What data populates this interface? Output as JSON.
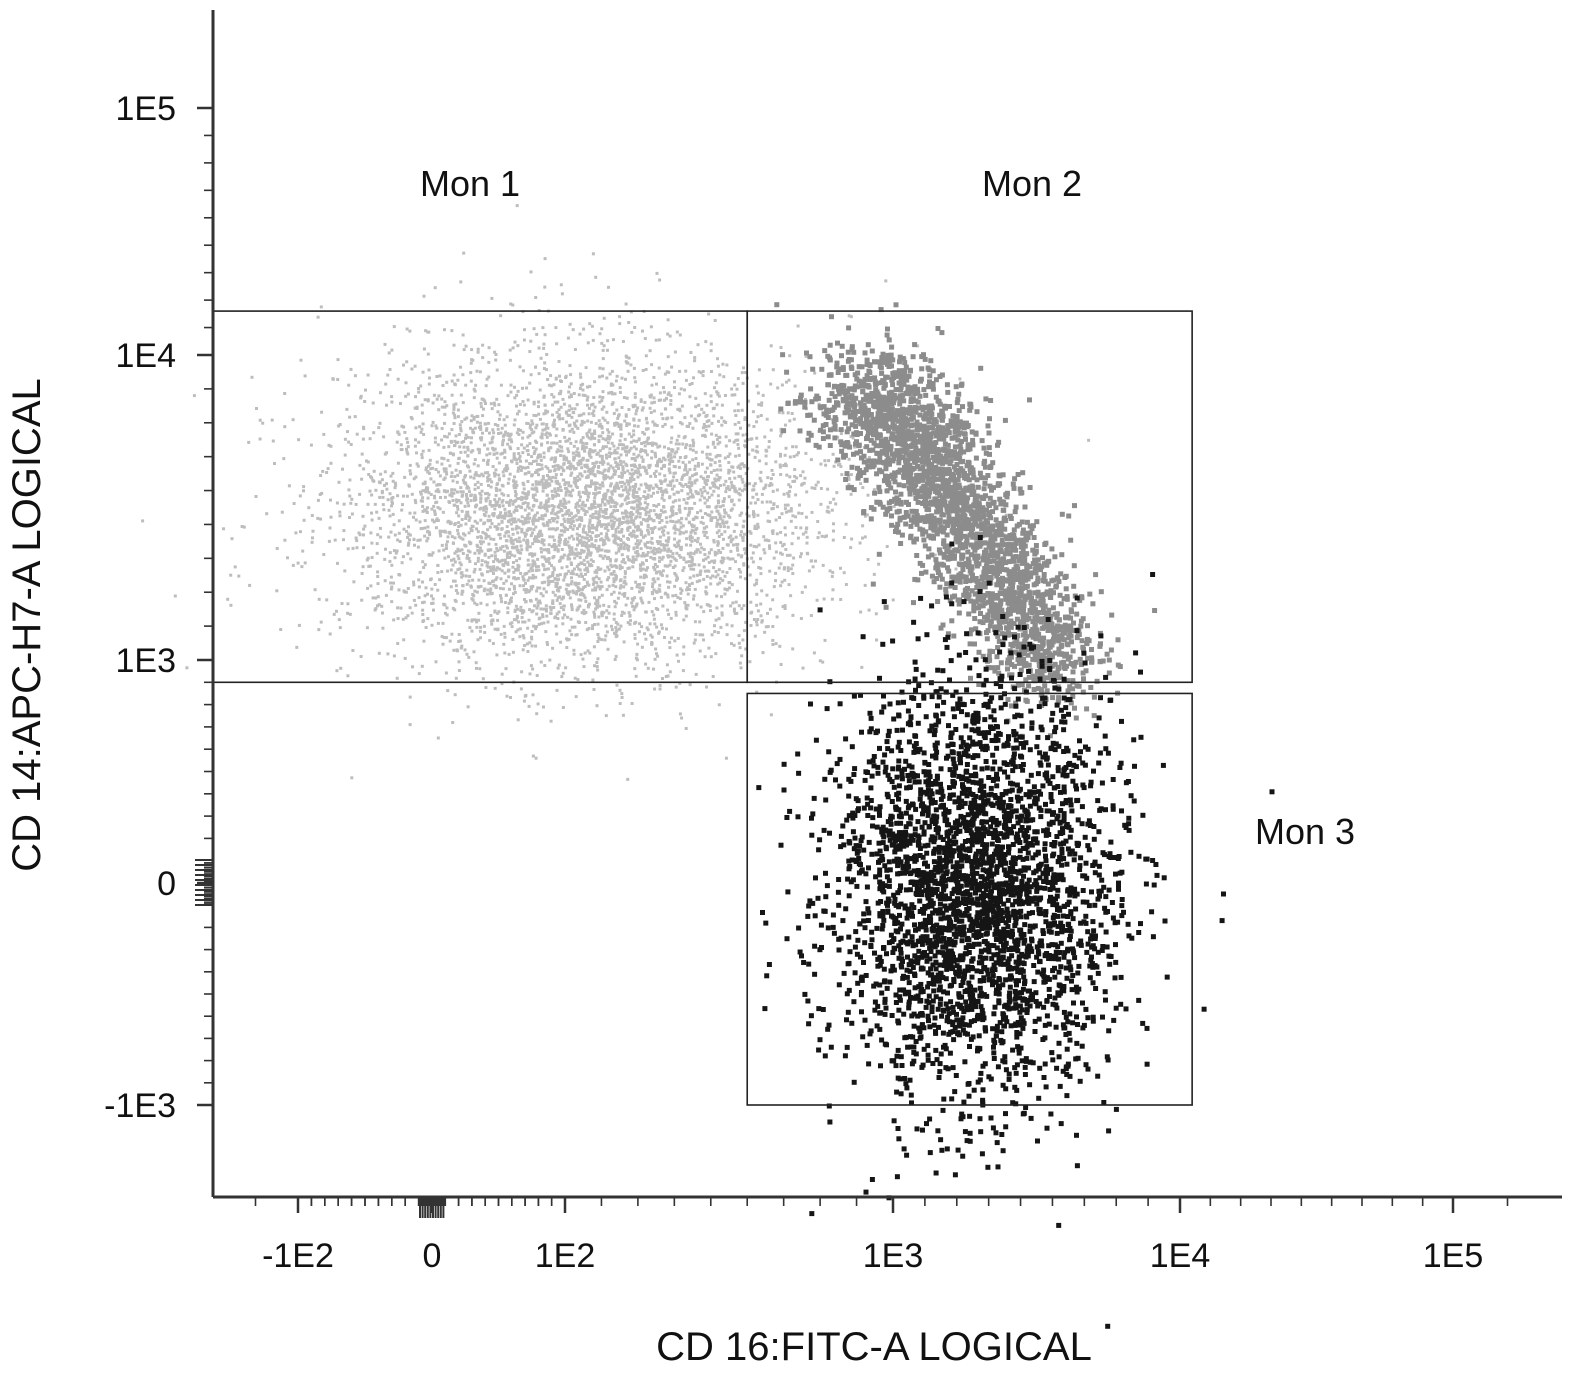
{
  "chart_data": {
    "type": "scatter",
    "xlabel": "CD 16:FITC-A LOGICAL",
    "ylabel": "CD 14:APC-H7-A LOGICAL",
    "x_scale": "logicle",
    "y_scale": "logicle",
    "xlim": [
      -300,
      300000
    ],
    "ylim": [
      -3000,
      200000
    ],
    "x_ticks": [
      {
        "value": -100,
        "label": "-1E2"
      },
      {
        "value": 0,
        "label": "0"
      },
      {
        "value": 100,
        "label": "1E2"
      },
      {
        "value": 1000,
        "label": "1E3"
      },
      {
        "value": 10000,
        "label": "1E4"
      },
      {
        "value": 100000,
        "label": "1E5"
      }
    ],
    "y_ticks": [
      {
        "value": -1000,
        "label": "-1E3"
      },
      {
        "value": 0,
        "label": "0"
      },
      {
        "value": 1000,
        "label": "1E3"
      },
      {
        "value": 10000,
        "label": "1E4"
      },
      {
        "value": 100000,
        "label": "1E5"
      }
    ],
    "grid": false,
    "gates": [
      {
        "name": "Mon 1",
        "x_range": [
          -300,
          600
        ],
        "y_range": [
          900,
          26000
        ]
      },
      {
        "name": "Mon 2",
        "x_range": [
          600,
          14000
        ],
        "y_range": [
          900,
          26000
        ]
      },
      {
        "name": "Mon 3",
        "x_range": [
          600,
          14000
        ],
        "y_range": [
          -1000,
          850
        ]
      }
    ],
    "series": [
      {
        "name": "Mon 1",
        "color": "#bdbdbd",
        "x_center": 150,
        "x_spread": [
          -150,
          600
        ],
        "y_center": 5500,
        "y_spread": [
          1500,
          15000
        ]
      },
      {
        "name": "Mon 2",
        "color": "#8c8c8c",
        "x_center": 2500,
        "x_spread": [
          600,
          7000
        ],
        "y_center": 4000,
        "y_spread": [
          900,
          12000
        ]
      },
      {
        "name": "Mon 3",
        "color": "#151515",
        "x_center": 3500,
        "x_spread": [
          1500,
          12000
        ],
        "y_center": 0,
        "y_spread": [
          -1000,
          850
        ]
      }
    ]
  }
}
